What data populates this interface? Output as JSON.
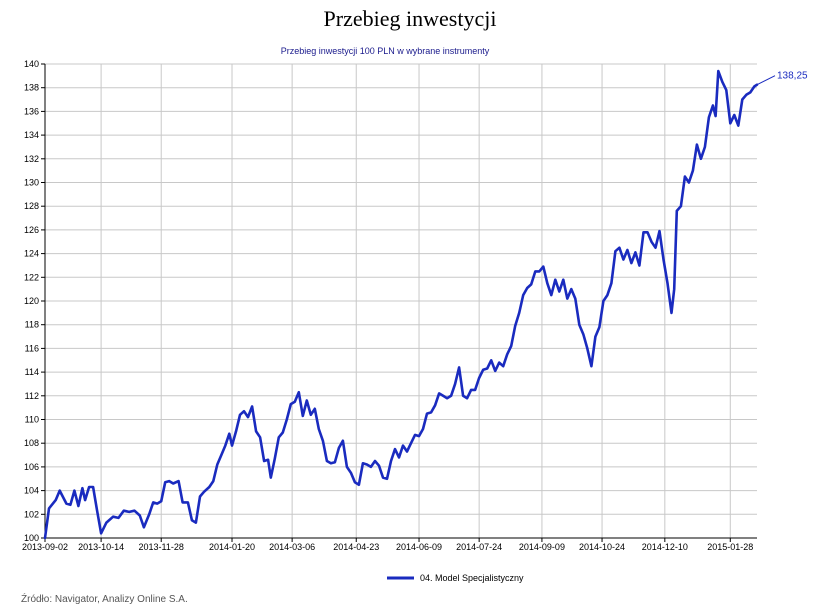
{
  "page": {
    "title": "Przebieg inwestycji",
    "source": "Źródło: Navigator, Analizy Online S.A."
  },
  "chart_data": {
    "type": "line",
    "title": "Przebieg inwestycji 100 PLN w wybrane instrumenty",
    "xlabel": "",
    "ylabel": "",
    "ylim": [
      100,
      140
    ],
    "yticks": [
      100,
      102,
      104,
      106,
      108,
      110,
      112,
      114,
      116,
      118,
      120,
      122,
      124,
      126,
      128,
      130,
      132,
      134,
      136,
      138,
      140
    ],
    "xlim": [
      "2013-09-02",
      "2015-02-17"
    ],
    "xticks": [
      "2013-09-02",
      "2013-10-14",
      "2013-11-28",
      "2014-01-20",
      "2014-03-06",
      "2014-04-23",
      "2014-06-09",
      "2014-07-24",
      "2014-09-09",
      "2014-10-24",
      "2014-12-10",
      "2015-01-28"
    ],
    "grid": true,
    "legend_position": "bottom",
    "series_color": "#1a2bbf",
    "end_label": "138,25",
    "series": [
      {
        "name": "04. Model Specjalistyczny",
        "points": [
          [
            "2013-09-02",
            100.0
          ],
          [
            "2013-09-05",
            102.5
          ],
          [
            "2013-09-10",
            103.2
          ],
          [
            "2013-09-13",
            104.0
          ],
          [
            "2013-09-18",
            102.9
          ],
          [
            "2013-09-21",
            102.8
          ],
          [
            "2013-09-24",
            104.0
          ],
          [
            "2013-09-27",
            102.7
          ],
          [
            "2013-09-30",
            104.2
          ],
          [
            "2013-10-02",
            103.2
          ],
          [
            "2013-10-05",
            104.3
          ],
          [
            "2013-10-08",
            104.3
          ],
          [
            "2013-10-11",
            102.3
          ],
          [
            "2013-10-14",
            100.4
          ],
          [
            "2013-10-18",
            101.3
          ],
          [
            "2013-10-23",
            101.8
          ],
          [
            "2013-10-27",
            101.7
          ],
          [
            "2013-10-31",
            102.3
          ],
          [
            "2013-11-04",
            102.2
          ],
          [
            "2013-11-08",
            102.3
          ],
          [
            "2013-11-12",
            101.9
          ],
          [
            "2013-11-15",
            100.9
          ],
          [
            "2013-11-19",
            102.0
          ],
          [
            "2013-11-22",
            103.0
          ],
          [
            "2013-11-25",
            102.9
          ],
          [
            "2013-11-28",
            103.1
          ],
          [
            "2013-12-01",
            104.7
          ],
          [
            "2013-12-04",
            104.8
          ],
          [
            "2013-12-07",
            104.6
          ],
          [
            "2013-12-11",
            104.8
          ],
          [
            "2013-12-14",
            103.0
          ],
          [
            "2013-12-18",
            103.0
          ],
          [
            "2013-12-21",
            101.5
          ],
          [
            "2013-12-24",
            101.3
          ],
          [
            "2013-12-27",
            103.5
          ],
          [
            "2013-12-30",
            103.9
          ],
          [
            "2014-01-03",
            104.3
          ],
          [
            "2014-01-06",
            104.8
          ],
          [
            "2014-01-09",
            106.2
          ],
          [
            "2014-01-12",
            107.0
          ],
          [
            "2014-01-15",
            107.8
          ],
          [
            "2014-01-18",
            108.8
          ],
          [
            "2014-01-20",
            107.8
          ],
          [
            "2014-01-23",
            109.0
          ],
          [
            "2014-01-26",
            110.4
          ],
          [
            "2014-01-29",
            110.7
          ],
          [
            "2014-02-01",
            110.2
          ],
          [
            "2014-02-04",
            111.1
          ],
          [
            "2014-02-07",
            109.0
          ],
          [
            "2014-02-10",
            108.5
          ],
          [
            "2014-02-13",
            106.5
          ],
          [
            "2014-02-16",
            106.6
          ],
          [
            "2014-02-18",
            105.1
          ],
          [
            "2014-02-21",
            106.7
          ],
          [
            "2014-02-24",
            108.5
          ],
          [
            "2014-02-27",
            108.9
          ],
          [
            "2014-03-02",
            110.0
          ],
          [
            "2014-03-05",
            111.3
          ],
          [
            "2014-03-08",
            111.5
          ],
          [
            "2014-03-11",
            112.3
          ],
          [
            "2014-03-14",
            110.3
          ],
          [
            "2014-03-17",
            111.6
          ],
          [
            "2014-03-20",
            110.4
          ],
          [
            "2014-03-23",
            110.9
          ],
          [
            "2014-03-26",
            109.2
          ],
          [
            "2014-03-29",
            108.2
          ],
          [
            "2014-04-01",
            106.5
          ],
          [
            "2014-04-04",
            106.3
          ],
          [
            "2014-04-07",
            106.4
          ],
          [
            "2014-04-10",
            107.6
          ],
          [
            "2014-04-13",
            108.2
          ],
          [
            "2014-04-16",
            106.0
          ],
          [
            "2014-04-19",
            105.5
          ],
          [
            "2014-04-22",
            104.7
          ],
          [
            "2014-04-25",
            104.5
          ],
          [
            "2014-04-28",
            106.3
          ],
          [
            "2014-05-01",
            106.2
          ],
          [
            "2014-05-04",
            106.0
          ],
          [
            "2014-05-07",
            106.5
          ],
          [
            "2014-05-10",
            106.1
          ],
          [
            "2014-05-13",
            105.1
          ],
          [
            "2014-05-16",
            105.0
          ],
          [
            "2014-05-19",
            106.5
          ],
          [
            "2014-05-22",
            107.5
          ],
          [
            "2014-05-25",
            106.8
          ],
          [
            "2014-05-28",
            107.8
          ],
          [
            "2014-05-31",
            107.3
          ],
          [
            "2014-06-03",
            108.0
          ],
          [
            "2014-06-06",
            108.7
          ],
          [
            "2014-06-09",
            108.6
          ],
          [
            "2014-06-12",
            109.2
          ],
          [
            "2014-06-15",
            110.5
          ],
          [
            "2014-06-18",
            110.6
          ],
          [
            "2014-06-21",
            111.2
          ],
          [
            "2014-06-24",
            112.2
          ],
          [
            "2014-06-27",
            112.0
          ],
          [
            "2014-06-30",
            111.8
          ],
          [
            "2014-07-03",
            112.0
          ],
          [
            "2014-07-06",
            113.0
          ],
          [
            "2014-07-09",
            114.4
          ],
          [
            "2014-07-12",
            112.0
          ],
          [
            "2014-07-15",
            111.8
          ],
          [
            "2014-07-18",
            112.5
          ],
          [
            "2014-07-21",
            112.5
          ],
          [
            "2014-07-24",
            113.5
          ],
          [
            "2014-07-27",
            114.2
          ],
          [
            "2014-07-30",
            114.3
          ],
          [
            "2014-08-02",
            115.0
          ],
          [
            "2014-08-05",
            114.1
          ],
          [
            "2014-08-08",
            114.8
          ],
          [
            "2014-08-11",
            114.5
          ],
          [
            "2014-08-14",
            115.5
          ],
          [
            "2014-08-17",
            116.2
          ],
          [
            "2014-08-20",
            117.9
          ],
          [
            "2014-08-23",
            119.0
          ],
          [
            "2014-08-26",
            120.5
          ],
          [
            "2014-08-29",
            121.1
          ],
          [
            "2014-09-01",
            121.4
          ],
          [
            "2014-09-04",
            122.5
          ],
          [
            "2014-09-07",
            122.5
          ],
          [
            "2014-09-10",
            122.9
          ],
          [
            "2014-09-13",
            121.5
          ],
          [
            "2014-09-16",
            120.5
          ],
          [
            "2014-09-19",
            121.8
          ],
          [
            "2014-09-22",
            120.8
          ],
          [
            "2014-09-25",
            121.8
          ],
          [
            "2014-09-28",
            120.2
          ],
          [
            "2014-10-01",
            121.0
          ],
          [
            "2014-10-04",
            120.2
          ],
          [
            "2014-10-07",
            118.0
          ],
          [
            "2014-10-10",
            117.2
          ],
          [
            "2014-10-13",
            116.0
          ],
          [
            "2014-10-16",
            114.5
          ],
          [
            "2014-10-19",
            117.0
          ],
          [
            "2014-10-22",
            117.8
          ],
          [
            "2014-10-25",
            120.0
          ],
          [
            "2014-10-28",
            120.5
          ],
          [
            "2014-10-31",
            121.5
          ],
          [
            "2014-11-03",
            124.2
          ],
          [
            "2014-11-06",
            124.5
          ],
          [
            "2014-11-09",
            123.5
          ],
          [
            "2014-11-12",
            124.3
          ],
          [
            "2014-11-15",
            123.2
          ],
          [
            "2014-11-18",
            124.1
          ],
          [
            "2014-11-21",
            123.0
          ],
          [
            "2014-11-24",
            125.8
          ],
          [
            "2014-11-27",
            125.8
          ],
          [
            "2014-11-30",
            125.0
          ],
          [
            "2014-12-03",
            124.5
          ],
          [
            "2014-12-06",
            125.9
          ],
          [
            "2014-12-09",
            123.5
          ],
          [
            "2014-12-12",
            121.5
          ],
          [
            "2014-12-15",
            119.0
          ],
          [
            "2014-12-17",
            121.0
          ],
          [
            "2014-12-19",
            127.6
          ],
          [
            "2014-12-22",
            128.0
          ],
          [
            "2014-12-25",
            130.5
          ],
          [
            "2014-12-28",
            130.0
          ],
          [
            "2014-12-31",
            131.0
          ],
          [
            "2015-01-03",
            133.2
          ],
          [
            "2015-01-06",
            132.0
          ],
          [
            "2015-01-09",
            133.0
          ],
          [
            "2015-01-12",
            135.5
          ],
          [
            "2015-01-15",
            136.5
          ],
          [
            "2015-01-17",
            135.6
          ],
          [
            "2015-01-19",
            139.4
          ],
          [
            "2015-01-22",
            138.5
          ],
          [
            "2015-01-25",
            137.8
          ],
          [
            "2015-01-28",
            135.0
          ],
          [
            "2015-01-31",
            135.7
          ],
          [
            "2015-02-03",
            134.8
          ],
          [
            "2015-02-06",
            137.0
          ],
          [
            "2015-02-09",
            137.4
          ],
          [
            "2015-02-12",
            137.6
          ],
          [
            "2015-02-15",
            138.1
          ],
          [
            "2015-02-17",
            138.25
          ]
        ]
      }
    ]
  }
}
